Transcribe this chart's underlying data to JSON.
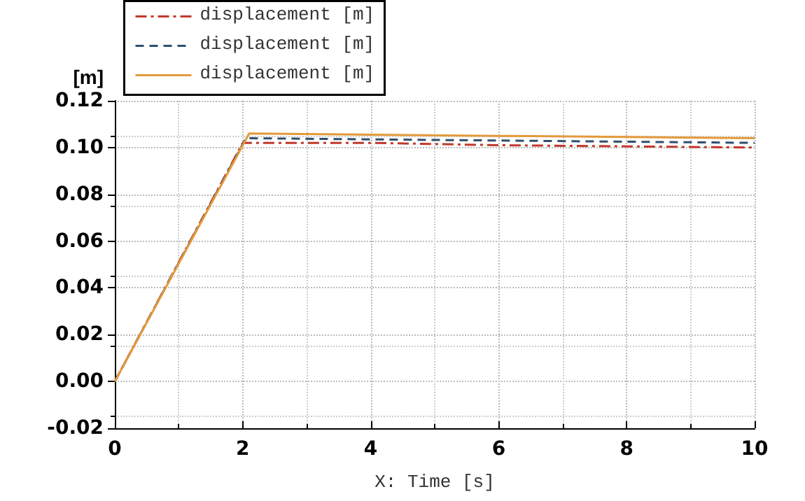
{
  "chart_data": {
    "type": "line",
    "xlabel": "X: Time [s]",
    "ylabel": "[m]",
    "xlim": [
      0,
      10
    ],
    "xticks": [
      0,
      2,
      4,
      6,
      8,
      10
    ],
    "ylim": [
      -0.02,
      0.12
    ],
    "yticks": [
      -0.02,
      {
        "value": 0,
        "label": "0.00"
      },
      0.02,
      0.04,
      0.06,
      0.08,
      {
        "value": 0.1,
        "label": "0.10"
      },
      0.12
    ],
    "grid": true,
    "legend": "top left",
    "marker": "none",
    "series": [
      {
        "name": "displacement [m]",
        "color": "#c0392b",
        "line_style": "dashdot",
        "x": [
          0,
          2,
          4,
          6,
          8,
          10
        ],
        "values": [
          0,
          0.102,
          0.102,
          0.101,
          0.1005,
          0.1
        ]
      },
      {
        "name": "displacement [m]",
        "color": "#2e4f6e",
        "line_style": "dashed",
        "x": [
          0,
          2.05,
          4,
          6,
          8,
          10
        ],
        "values": [
          0,
          0.104,
          0.1035,
          0.103,
          0.1025,
          0.102
        ]
      },
      {
        "name": "displacement [m]",
        "color": "#e39a3b",
        "line_style": "solid",
        "x": [
          0,
          2.1,
          4,
          6,
          8,
          10
        ],
        "values": [
          0,
          0.106,
          0.1055,
          0.105,
          0.1045,
          0.104
        ]
      }
    ]
  }
}
